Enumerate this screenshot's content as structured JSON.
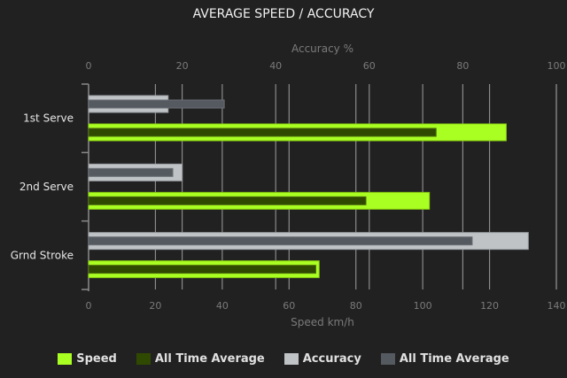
{
  "chart_data": {
    "type": "bar",
    "orientation": "horizontal",
    "title": "AVERAGE SPEED / ACCURACY",
    "categories": [
      "1st Serve",
      "2nd Serve",
      "Grnd Stroke"
    ],
    "top_axis": {
      "label": "Accuracy %",
      "range": [
        0,
        100
      ],
      "ticks": [
        0,
        20,
        40,
        60,
        80,
        100
      ]
    },
    "bottom_axis": {
      "label": "Speed km/h",
      "range": [
        0,
        140
      ],
      "ticks": [
        0,
        20,
        40,
        60,
        80,
        100,
        120,
        140
      ]
    },
    "grid": true,
    "legend_position": "bottom",
    "series": [
      {
        "name": "Speed",
        "axis": "bottom",
        "color": "#aaff22",
        "values": [
          125,
          102,
          69
        ]
      },
      {
        "name": "All Time Average",
        "axis": "bottom",
        "color": "#2f4a00",
        "values": [
          104,
          83,
          68
        ]
      },
      {
        "name": "Accuracy",
        "axis": "top",
        "color": "#bfc3c6",
        "values": [
          17,
          20,
          94
        ]
      },
      {
        "name": "All Time Average",
        "axis": "top",
        "color": "#555a60",
        "values": [
          29,
          18,
          82
        ]
      }
    ]
  }
}
